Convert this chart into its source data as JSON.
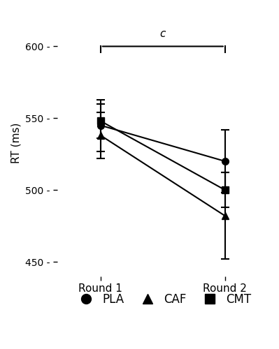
{
  "groups": [
    "PLA",
    "CAF",
    "CMT"
  ],
  "round_labels": [
    "Round 1",
    "Round 2"
  ],
  "means": {
    "PLA": [
      545,
      520
    ],
    "CAF": [
      538,
      482
    ],
    "CMT": [
      548,
      500
    ]
  },
  "errors": {
    "PLA": [
      18,
      22
    ],
    "CAF": [
      16,
      30
    ],
    "CMT": [
      12,
      12
    ]
  },
  "markers": {
    "PLA": "o",
    "CAF": "^",
    "CMT": "s"
  },
  "ylabel": "RT (ms)",
  "ylim": [
    440,
    625
  ],
  "yticks": [
    450,
    500,
    550,
    600
  ],
  "significance_label": "c",
  "background_color": "#ffffff",
  "linewidth": 1.5,
  "markersize": 7,
  "capsize": 4,
  "label_fontsize": 11,
  "tick_fontsize": 10,
  "legend_fontsize": 12
}
